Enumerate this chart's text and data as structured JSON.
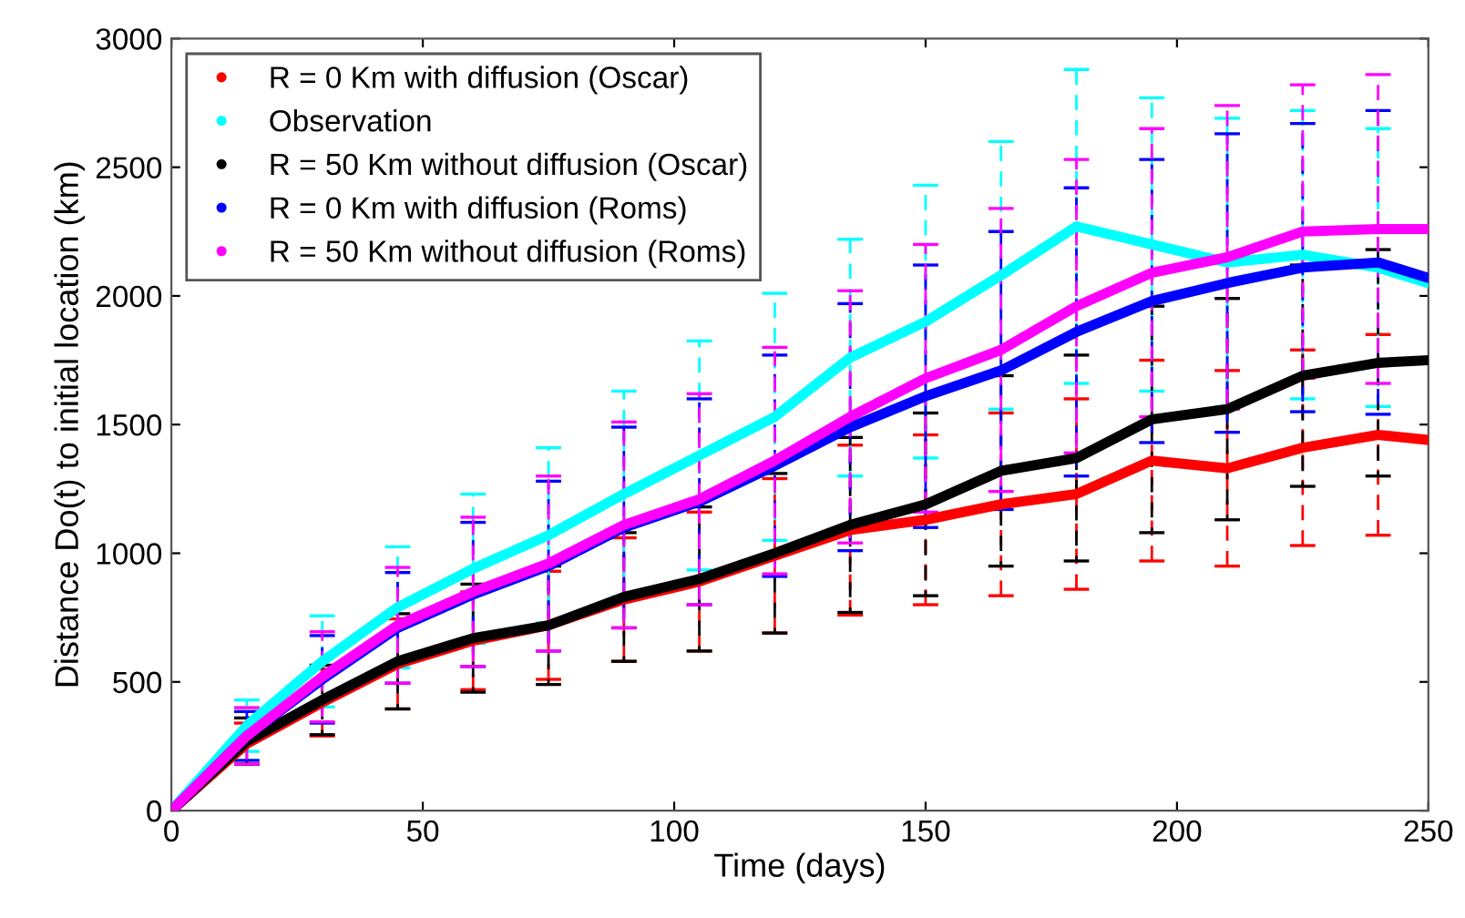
{
  "chart_data": {
    "type": "line",
    "xlabel": "Time (days)",
    "ylabel": "Distance Do(t) to initial location (km)",
    "x": [
      0,
      15,
      30,
      45,
      60,
      75,
      90,
      105,
      120,
      135,
      150,
      165,
      180,
      195,
      210,
      225,
      240,
      250
    ],
    "series": [
      {
        "name": "R = 0 Km with diffusion (Oscar)",
        "color": "#ff0000",
        "values": [
          0,
          260,
          420,
          570,
          660,
          720,
          820,
          890,
          990,
          1090,
          1130,
          1190,
          1230,
          1360,
          1330,
          1410,
          1460,
          1440
        ],
        "errors": [
          null,
          80,
          130,
          175,
          190,
          210,
          240,
          270,
          300,
          330,
          330,
          355,
          370,
          390,
          380,
          380,
          390,
          null
        ]
      },
      {
        "name": "Observation",
        "color": "#00ffff",
        "values": [
          0,
          330,
          580,
          790,
          940,
          1070,
          1230,
          1380,
          1530,
          1760,
          1900,
          2080,
          2270,
          2200,
          2130,
          2160,
          2110,
          2050
        ],
        "errors": [
          null,
          100,
          177,
          235,
          290,
          340,
          400,
          445,
          480,
          460,
          530,
          520,
          610,
          570,
          560,
          560,
          540,
          null
        ]
      },
      {
        "name": "R = 50 Km without diffusion (Oscar)",
        "color": "#000000",
        "values": [
          0,
          270,
          430,
          580,
          670,
          720,
          830,
          900,
          1000,
          1110,
          1190,
          1320,
          1370,
          1520,
          1560,
          1690,
          1740,
          1750
        ],
        "errors": [
          null,
          90,
          135,
          185,
          210,
          230,
          250,
          280,
          310,
          340,
          355,
          370,
          400,
          440,
          430,
          430,
          440,
          null
        ]
      },
      {
        "name": "R = 0 Km with diffusion (Roms)",
        "color": "#0000ff",
        "values": [
          0,
          290,
          510,
          710,
          840,
          950,
          1100,
          1200,
          1340,
          1490,
          1610,
          1710,
          1860,
          1980,
          2050,
          2110,
          2130,
          2070
        ],
        "errors": [
          null,
          95,
          170,
          215,
          280,
          330,
          390,
          400,
          430,
          480,
          510,
          540,
          560,
          550,
          580,
          560,
          590,
          null
        ]
      },
      {
        "name": "R = 50 Km without diffusion (Roms)",
        "color": "#ff00ff",
        "values": [
          0,
          290,
          520,
          720,
          850,
          960,
          1110,
          1210,
          1360,
          1530,
          1680,
          1790,
          1960,
          2090,
          2150,
          2250,
          2260,
          2260
        ],
        "errors": [
          null,
          110,
          175,
          225,
          290,
          340,
          400,
          410,
          440,
          490,
          520,
          550,
          570,
          560,
          590,
          570,
          600,
          null
        ]
      }
    ],
    "xlim": [
      0,
      250
    ],
    "xticks": [
      0,
      50,
      100,
      150,
      200,
      250
    ],
    "ylim": [
      0,
      3000
    ],
    "yticks": [
      0,
      500,
      1000,
      1500,
      2000,
      2500,
      3000
    ],
    "legend": "top left"
  }
}
